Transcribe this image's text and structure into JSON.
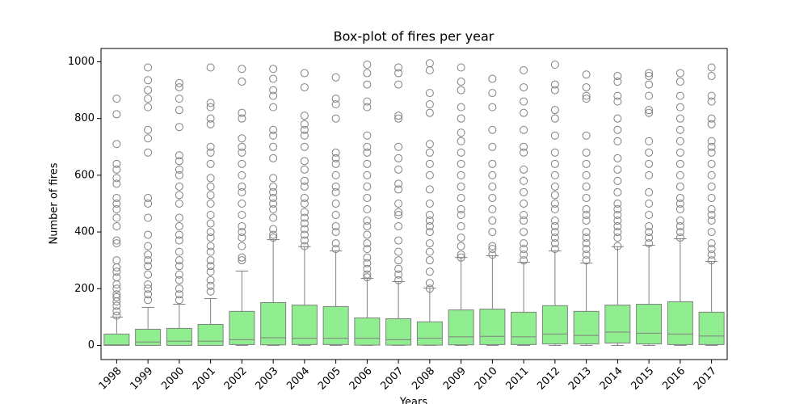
{
  "chart_data": {
    "type": "box",
    "title": "Box-plot of fires per year",
    "x_label": "Years",
    "y_label": "Number of fires",
    "box_color": "#90ee90",
    "edge_color": "#808080",
    "ylim": [
      -50,
      1047
    ],
    "yticks": [
      0,
      200,
      400,
      600,
      800,
      1000
    ],
    "categories": [
      "1998",
      "1999",
      "2000",
      "2001",
      "2002",
      "2003",
      "2004",
      "2005",
      "2006",
      "2007",
      "2008",
      "2009",
      "2010",
      "2011",
      "2012",
      "2013",
      "2014",
      "2015",
      "2016",
      "2017"
    ],
    "boxes": [
      {
        "whislo": 0,
        "q1": 0,
        "med": 2,
        "q3": 40,
        "whishi": 100,
        "fliers": [
          105,
          120,
          140,
          155,
          170,
          180,
          200,
          215,
          240,
          260,
          275,
          300,
          360,
          370,
          420,
          450,
          480,
          500,
          520,
          570,
          590,
          620,
          640,
          710,
          815,
          870
        ]
      },
      {
        "whislo": 0,
        "q1": 0,
        "med": 12,
        "q3": 57,
        "whishi": 134,
        "fliers": [
          160,
          180,
          200,
          215,
          250,
          280,
          300,
          320,
          350,
          390,
          450,
          500,
          520,
          680,
          730,
          760,
          840,
          870,
          900,
          935,
          980
        ]
      },
      {
        "whislo": 0,
        "q1": 0,
        "med": 15,
        "q3": 60,
        "whishi": 145,
        "fliers": [
          160,
          180,
          200,
          230,
          250,
          280,
          300,
          330,
          370,
          390,
          420,
          450,
          500,
          530,
          560,
          600,
          620,
          650,
          670,
          770,
          830,
          870,
          910,
          925
        ]
      },
      {
        "whislo": 0,
        "q1": 0,
        "med": 15,
        "q3": 74,
        "whishi": 165,
        "fliers": [
          190,
          210,
          230,
          260,
          280,
          300,
          330,
          350,
          380,
          400,
          430,
          460,
          500,
          530,
          560,
          590,
          640,
          680,
          700,
          780,
          800,
          840,
          855,
          980
        ]
      },
      {
        "whislo": 0,
        "q1": 3,
        "med": 20,
        "q3": 120,
        "whishi": 262,
        "fliers": [
          300,
          310,
          350,
          380,
          400,
          420,
          460,
          500,
          540,
          560,
          600,
          640,
          680,
          700,
          730,
          800,
          820,
          930,
          975
        ]
      },
      {
        "whislo": 0,
        "q1": 2,
        "med": 27,
        "q3": 151,
        "whishi": 373,
        "fliers": [
          380,
          390,
          410,
          450,
          480,
          500,
          520,
          540,
          560,
          590,
          660,
          700,
          740,
          760,
          840,
          880,
          900,
          940,
          975
        ]
      },
      {
        "whislo": 0,
        "q1": 3,
        "med": 25,
        "q3": 142,
        "whishi": 348,
        "fliers": [
          350,
          370,
          390,
          410,
          430,
          450,
          470,
          500,
          520,
          560,
          580,
          620,
          650,
          700,
          740,
          760,
          780,
          810,
          910,
          960
        ]
      },
      {
        "whislo": 0,
        "q1": 3,
        "med": 25,
        "q3": 137,
        "whishi": 333,
        "fliers": [
          340,
          360,
          400,
          420,
          460,
          500,
          540,
          560,
          600,
          640,
          660,
          680,
          800,
          850,
          870,
          945
        ]
      },
      {
        "whislo": 0,
        "q1": 1,
        "med": 25,
        "q3": 97,
        "whishi": 236,
        "fliers": [
          240,
          250,
          270,
          290,
          310,
          340,
          360,
          390,
          420,
          440,
          480,
          520,
          560,
          600,
          640,
          680,
          700,
          740,
          840,
          860,
          920,
          960,
          990
        ]
      },
      {
        "whislo": 0,
        "q1": 1,
        "med": 20,
        "q3": 94,
        "whishi": 225,
        "fliers": [
          230,
          250,
          270,
          300,
          330,
          370,
          420,
          460,
          470,
          500,
          550,
          570,
          620,
          660,
          700,
          800,
          810,
          920,
          960,
          980
        ]
      },
      {
        "whislo": 0,
        "q1": 1,
        "med": 25,
        "q3": 83,
        "whishi": 202,
        "fliers": [
          200,
          220,
          260,
          300,
          330,
          360,
          400,
          420,
          440,
          460,
          500,
          550,
          600,
          640,
          680,
          710,
          820,
          850,
          890,
          970,
          995
        ]
      },
      {
        "whislo": 0,
        "q1": 2,
        "med": 30,
        "q3": 125,
        "whishi": 310,
        "fliers": [
          310,
          320,
          350,
          380,
          420,
          460,
          480,
          520,
          560,
          600,
          640,
          680,
          720,
          750,
          800,
          840,
          900,
          930,
          980
        ]
      },
      {
        "whislo": 0,
        "q1": 3,
        "med": 32,
        "q3": 128,
        "whishi": 316,
        "fliers": [
          320,
          340,
          350,
          400,
          440,
          480,
          520,
          560,
          600,
          640,
          700,
          760,
          840,
          890,
          940
        ]
      },
      {
        "whislo": 0,
        "q1": 3,
        "med": 30,
        "q3": 117,
        "whishi": 293,
        "fliers": [
          300,
          320,
          340,
          360,
          400,
          440,
          460,
          500,
          540,
          580,
          620,
          680,
          700,
          760,
          820,
          860,
          910,
          970
        ]
      },
      {
        "whislo": 0,
        "q1": 5,
        "med": 40,
        "q3": 140,
        "whishi": 333,
        "fliers": [
          340,
          360,
          380,
          400,
          420,
          440,
          480,
          500,
          530,
          560,
          600,
          640,
          680,
          740,
          800,
          830,
          900,
          920,
          990
        ]
      },
      {
        "whislo": 0,
        "q1": 5,
        "med": 35,
        "q3": 120,
        "whishi": 290,
        "fliers": [
          300,
          320,
          340,
          360,
          380,
          400,
          440,
          460,
          480,
          520,
          560,
          600,
          640,
          680,
          740,
          870,
          880,
          910,
          955
        ]
      },
      {
        "whislo": 0,
        "q1": 8,
        "med": 47,
        "q3": 142,
        "whishi": 348,
        "fliers": [
          350,
          380,
          400,
          420,
          440,
          460,
          480,
          500,
          540,
          580,
          620,
          660,
          720,
          760,
          800,
          860,
          880,
          930,
          950
        ]
      },
      {
        "whislo": 0,
        "q1": 5,
        "med": 43,
        "q3": 145,
        "whishi": 353,
        "fliers": [
          360,
          380,
          400,
          420,
          460,
          500,
          540,
          600,
          640,
          680,
          720,
          820,
          830,
          880,
          920,
          950,
          960
        ]
      },
      {
        "whislo": 0,
        "q1": 3,
        "med": 40,
        "q3": 154,
        "whishi": 376,
        "fliers": [
          380,
          400,
          420,
          440,
          480,
          500,
          520,
          560,
          600,
          640,
          680,
          720,
          760,
          800,
          840,
          880,
          930,
          960
        ]
      },
      {
        "whislo": 0,
        "q1": 3,
        "med": 33,
        "q3": 117,
        "whishi": 296,
        "fliers": [
          300,
          320,
          340,
          360,
          400,
          440,
          460,
          480,
          520,
          560,
          600,
          640,
          680,
          700,
          720,
          780,
          800,
          860,
          880,
          950,
          980
        ]
      }
    ]
  }
}
